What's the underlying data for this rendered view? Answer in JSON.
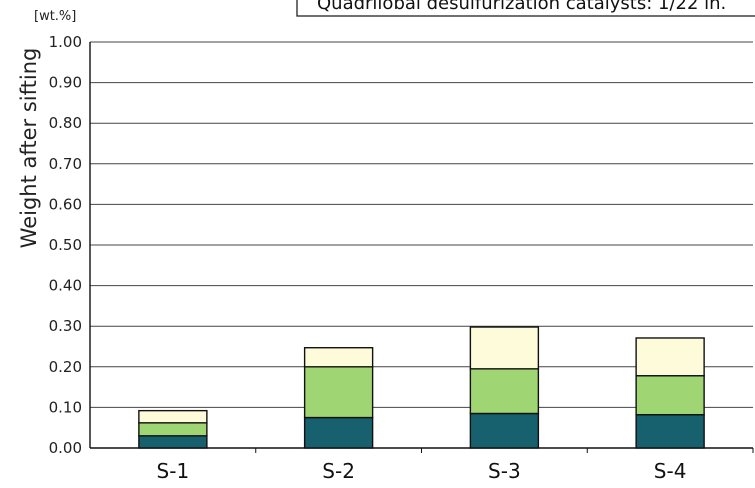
{
  "chart_data": {
    "type": "bar",
    "stacked": true,
    "categories": [
      "S-1",
      "S-2",
      "S-3",
      "S-4"
    ],
    "series": [
      {
        "values": [
          0.03,
          0.075,
          0.085,
          0.082
        ]
      },
      {
        "values": [
          0.032,
          0.125,
          0.11,
          0.096
        ]
      },
      {
        "values": [
          0.03,
          0.047,
          0.103,
          0.093
        ]
      }
    ],
    "colors": [
      "#17606d",
      "#9fd573",
      "#fdfbd9"
    ],
    "ylabel": "Weight after sifting",
    "yunit": "[wt.%]",
    "ylim": [
      0,
      1.0
    ],
    "yticks": [
      "0.00",
      "0.10",
      "0.20",
      "0.30",
      "0.40",
      "0.50",
      "0.60",
      "0.70",
      "0.80",
      "0.90",
      "1.00"
    ],
    "grid": true,
    "legend_text": "Quadrilobal desulfurization catalysts: 1/22 in."
  }
}
